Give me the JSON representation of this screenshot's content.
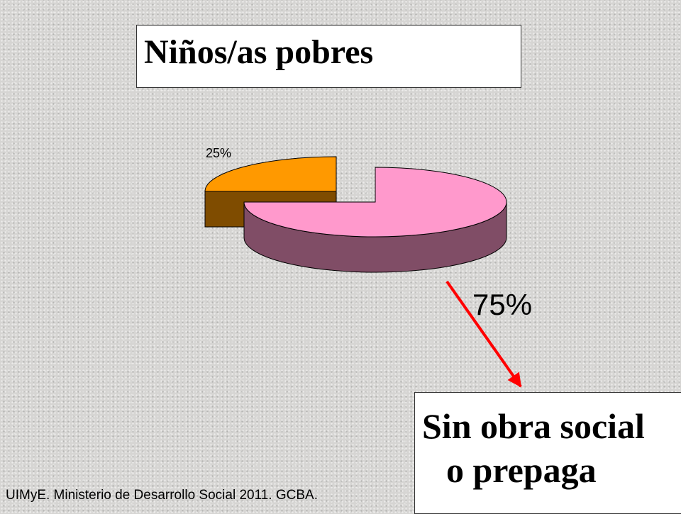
{
  "slide": {
    "title": "Niños/as pobres",
    "callout_line1": "Sin obra social",
    "callout_line2": "o prepaga",
    "source": "UIMyE. Ministerio de Desarrollo Social 2011. GCBA."
  },
  "chart_data": {
    "type": "pie",
    "title": "Niños/as pobres",
    "slices": [
      {
        "value": 25,
        "label": "25%",
        "color": "#ff9900",
        "side_color": "#7f4c00"
      },
      {
        "value": 75,
        "label": "75%",
        "color": "#ff99cc",
        "side_color": "#804d66"
      }
    ],
    "exploded": true,
    "three_d": true,
    "legend": "none"
  },
  "colors": {
    "arrow": "#ff0000"
  }
}
